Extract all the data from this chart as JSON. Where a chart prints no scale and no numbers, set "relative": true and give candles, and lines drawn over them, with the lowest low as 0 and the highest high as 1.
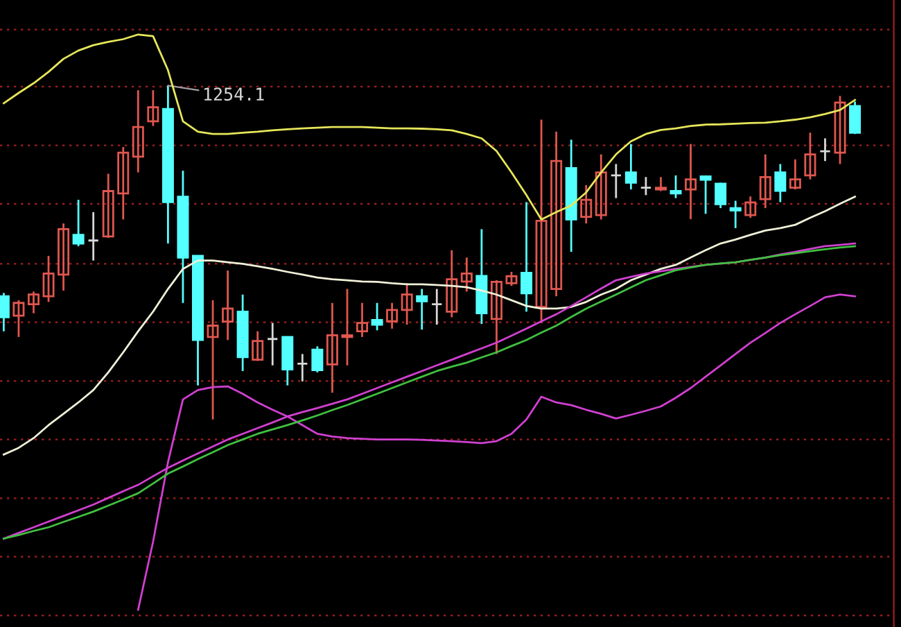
{
  "chart_data": {
    "type": "candlestick",
    "relative": true,
    "ref_lines": [
      {
        "axis": "y",
        "value": 1.168,
        "color": "#a02020",
        "line_style": "dotted"
      },
      {
        "axis": "y",
        "value": 0.997,
        "color": "#a02020",
        "line_style": "dotted"
      },
      {
        "axis": "y",
        "value": 0.821,
        "color": "#a02020",
        "line_style": "dotted"
      },
      {
        "axis": "y",
        "value": 0.646,
        "color": "#a02020",
        "line_style": "dotted"
      },
      {
        "axis": "y",
        "value": 0.466,
        "color": "#a02020",
        "line_style": "dotted"
      },
      {
        "axis": "y",
        "value": 0.291,
        "color": "#a02020",
        "line_style": "dotted"
      },
      {
        "axis": "y",
        "value": 0.115,
        "color": "#a02020",
        "line_style": "dotted"
      },
      {
        "axis": "y",
        "value": -0.06,
        "color": "#a02020",
        "line_style": "dotted"
      },
      {
        "axis": "y",
        "value": -0.236,
        "color": "#a02020",
        "line_style": "dotted"
      },
      {
        "axis": "y",
        "value": -0.411,
        "color": "#a02020",
        "line_style": "dotted"
      },
      {
        "axis": "y",
        "value": -0.587,
        "color": "#a02020",
        "line_style": "dotted"
      }
    ],
    "categories": [
      null,
      null,
      null,
      null,
      null,
      null,
      null,
      null,
      null,
      null,
      null,
      null,
      null,
      null,
      null,
      null,
      null,
      null,
      null,
      null,
      null,
      null,
      null,
      null,
      null,
      null,
      null,
      null,
      null,
      null,
      null,
      null,
      null,
      null,
      null,
      null,
      null,
      null,
      null,
      null,
      null,
      null,
      null,
      null,
      null,
      null,
      null,
      null,
      null,
      null,
      null,
      null,
      null,
      null,
      null,
      null,
      null,
      null
    ],
    "ohlc": [
      [
        0.369,
        0.379,
        0.264,
        0.306
      ],
      [
        0.311,
        0.357,
        0.247,
        0.349
      ],
      [
        0.345,
        0.383,
        0.318,
        0.374
      ],
      [
        0.369,
        0.49,
        0.352,
        0.437
      ],
      [
        0.434,
        0.587,
        0.386,
        0.57
      ],
      [
        0.553,
        0.658,
        0.519,
        0.527
      ],
      [
        0.536,
        0.621,
        0.476,
        0.536
      ],
      [
        0.548,
        0.736,
        0.544,
        0.684
      ],
      [
        0.677,
        0.816,
        0.599,
        0.799
      ],
      [
        0.787,
        0.986,
        0.74,
        0.876
      ],
      [
        0.893,
        0.986,
        0.879,
        0.935
      ],
      [
        0.93,
        1.0,
        0.527,
        0.651
      ],
      [
        0.667,
        0.745,
        0.349,
        0.485
      ],
      [
        0.49,
        0.49,
        0.102,
        0.238
      ],
      [
        0.247,
        0.357,
        0.0,
        0.281
      ],
      [
        0.293,
        0.446,
        0.238,
        0.332
      ],
      [
        0.323,
        0.374,
        0.145,
        0.187
      ],
      [
        0.179,
        0.264,
        0.175,
        0.235
      ],
      [
        0.241,
        0.289,
        0.162,
        0.241
      ],
      [
        0.247,
        0.247,
        0.102,
        0.15
      ],
      [
        0.167,
        0.196,
        0.114,
        0.167
      ],
      [
        0.209,
        0.219,
        0.141,
        0.148
      ],
      [
        0.165,
        0.349,
        0.08,
        0.252
      ],
      [
        0.247,
        0.391,
        0.162,
        0.252
      ],
      [
        0.264,
        0.349,
        0.247,
        0.289
      ],
      [
        0.298,
        0.349,
        0.267,
        0.284
      ],
      [
        0.294,
        0.349,
        0.272,
        0.328
      ],
      [
        0.328,
        0.408,
        0.284,
        0.374
      ],
      [
        0.369,
        0.391,
        0.269,
        0.354
      ],
      [
        0.345,
        0.391,
        0.284,
        0.345
      ],
      [
        0.323,
        0.507,
        0.306,
        0.42
      ],
      [
        0.413,
        0.485,
        0.383,
        0.437
      ],
      [
        0.43,
        0.57,
        0.286,
        0.318
      ],
      [
        0.301,
        0.417,
        0.196,
        0.412
      ],
      [
        0.408,
        0.442,
        0.4,
        0.429
      ],
      [
        0.439,
        0.651,
        0.323,
        0.378
      ],
      [
        0.337,
        0.898,
        0.289,
        0.595
      ],
      [
        0.391,
        0.862,
        0.369,
        0.774
      ],
      [
        0.753,
        0.838,
        0.502,
        0.599
      ],
      [
        0.607,
        0.702,
        0.587,
        0.658
      ],
      [
        0.612,
        0.794,
        0.599,
        0.74
      ],
      [
        0.731,
        0.765,
        0.663,
        0.731
      ],
      [
        0.74,
        0.825,
        0.689,
        0.709
      ],
      [
        0.694,
        0.726,
        0.672,
        0.694
      ],
      [
        0.689,
        0.726,
        0.684,
        0.694
      ],
      [
        0.684,
        0.731,
        0.663,
        0.677
      ],
      [
        0.689,
        0.825,
        0.6,
        0.719
      ],
      [
        0.728,
        0.731,
        0.616,
        0.718
      ],
      [
        0.706,
        0.709,
        0.633,
        0.645
      ],
      [
        0.633,
        0.655,
        0.573,
        0.626
      ],
      [
        0.612,
        0.668,
        0.604,
        0.65
      ],
      [
        0.66,
        0.794,
        0.633,
        0.726
      ],
      [
        0.74,
        0.765,
        0.651,
        0.685
      ],
      [
        0.694,
        0.779,
        0.689,
        0.719
      ],
      [
        0.731,
        0.859,
        0.719,
        0.794
      ],
      [
        0.803,
        0.842,
        0.774,
        0.803
      ],
      [
        0.799,
        0.969,
        0.765,
        0.949
      ],
      [
        0.939,
        0.952,
        0.855,
        0.859
      ]
    ],
    "colors": [
      "#54ffff",
      "#e0574f",
      "#e0574f",
      "#e0574f",
      "#e0574f",
      "#54ffff",
      "#d8d8d8",
      "#e0574f",
      "#e0574f",
      "#e0574f",
      "#e0574f",
      "#54ffff",
      "#54ffff",
      "#54ffff",
      "#e0574f",
      "#e0574f",
      "#54ffff",
      "#e0574f",
      "#d8d8d8",
      "#54ffff",
      "#d8d8d8",
      "#54ffff",
      "#e0574f",
      "#e0574f",
      "#e0574f",
      "#54ffff",
      "#e0574f",
      "#e0574f",
      "#54ffff",
      "#d8d8d8",
      "#e0574f",
      "#e0574f",
      "#54ffff",
      "#e0574f",
      "#e0574f",
      "#54ffff",
      "#e0574f",
      "#e0574f",
      "#54ffff",
      "#e0574f",
      "#e0574f",
      "#d8d8d8",
      "#54ffff",
      "#d8d8d8",
      "#e0574f",
      "#54ffff",
      "#e0574f",
      "#54ffff",
      "#54ffff",
      "#54ffff",
      "#e0574f",
      "#e0574f",
      "#54ffff",
      "#e0574f",
      "#e0574f",
      "#d8d8d8",
      "#e0574f",
      "#54ffff"
    ],
    "series": [
      {
        "type": "line",
        "color": "#e6e65a",
        "values": [
          0.947,
          0.978,
          1.007,
          1.041,
          1.08,
          1.105,
          1.121,
          1.131,
          1.139,
          1.153,
          1.148,
          1.046,
          0.893,
          0.862,
          0.855,
          0.855,
          0.859,
          0.862,
          0.866,
          0.869,
          0.872,
          0.874,
          0.876,
          0.876,
          0.876,
          0.874,
          0.872,
          0.872,
          0.871,
          0.869,
          0.866,
          0.855,
          0.842,
          0.804,
          0.74,
          0.672,
          0.599,
          0.621,
          0.641,
          0.68,
          0.74,
          0.794,
          0.833,
          0.855,
          0.867,
          0.872,
          0.879,
          0.883,
          0.884,
          0.886,
          0.888,
          0.889,
          0.893,
          0.898,
          0.905,
          0.915,
          0.927,
          0.957
        ]
      },
      {
        "type": "line",
        "color": "#f0f0d8",
        "values": [
          -0.105,
          -0.085,
          -0.056,
          -0.017,
          0.017,
          0.051,
          0.088,
          0.141,
          0.201,
          0.264,
          0.323,
          0.391,
          0.451,
          0.476,
          0.476,
          0.471,
          0.466,
          0.459,
          0.451,
          0.442,
          0.434,
          0.425,
          0.42,
          0.417,
          0.413,
          0.412,
          0.408,
          0.405,
          0.405,
          0.403,
          0.4,
          0.396,
          0.386,
          0.374,
          0.357,
          0.34,
          0.332,
          0.332,
          0.337,
          0.352,
          0.374,
          0.391,
          0.417,
          0.434,
          0.451,
          0.463,
          0.485,
          0.507,
          0.527,
          0.539,
          0.553,
          0.566,
          0.573,
          0.583,
          0.604,
          0.624,
          0.646,
          0.667
        ]
      },
      {
        "type": "line",
        "color": "#d040d0",
        "values": [
          null,
          null,
          null,
          null,
          null,
          null,
          null,
          null,
          null,
          -0.57,
          -0.366,
          -0.128,
          0.06,
          0.088,
          0.097,
          0.099,
          0.077,
          0.051,
          0.029,
          0.009,
          -0.017,
          -0.043,
          -0.051,
          -0.056,
          -0.058,
          -0.06,
          -0.06,
          -0.06,
          -0.061,
          -0.063,
          -0.065,
          -0.068,
          -0.071,
          -0.065,
          -0.043,
          0.0,
          0.068,
          0.051,
          0.043,
          0.029,
          0.017,
          0.003,
          0.014,
          0.026,
          0.039,
          0.065,
          0.094,
          0.128,
          0.162,
          0.196,
          0.23,
          0.259,
          0.289,
          0.315,
          0.34,
          0.366,
          0.374,
          0.369
        ]
      },
      {
        "type": "line",
        "color": "#d040d0",
        "values": [
          -0.357,
          -0.34,
          -0.323,
          -0.306,
          -0.289,
          -0.272,
          -0.255,
          -0.235,
          -0.215,
          -0.196,
          -0.17,
          -0.145,
          -0.123,
          -0.102,
          -0.081,
          -0.06,
          -0.043,
          -0.026,
          -0.009,
          0.009,
          0.022,
          0.034,
          0.047,
          0.06,
          0.077,
          0.094,
          0.111,
          0.128,
          0.145,
          0.162,
          0.179,
          0.196,
          0.213,
          0.23,
          0.251,
          0.272,
          0.294,
          0.315,
          0.34,
          0.366,
          0.392,
          0.417,
          0.427,
          0.437,
          0.444,
          0.451,
          0.457,
          0.463,
          0.467,
          0.471,
          0.478,
          0.485,
          0.494,
          0.502,
          0.511,
          0.519,
          0.523,
          0.527
        ]
      },
      {
        "type": "line",
        "color": "#40c040",
        "values": [
          -0.357,
          -0.346,
          -0.334,
          -0.323,
          -0.307,
          -0.292,
          -0.276,
          -0.258,
          -0.24,
          -0.221,
          -0.192,
          -0.162,
          -0.141,
          -0.119,
          -0.098,
          -0.077,
          -0.06,
          -0.043,
          -0.03,
          -0.017,
          -0.003,
          0.012,
          0.028,
          0.043,
          0.06,
          0.077,
          0.094,
          0.111,
          0.128,
          0.145,
          0.158,
          0.17,
          0.186,
          0.201,
          0.22,
          0.238,
          0.26,
          0.281,
          0.307,
          0.332,
          0.353,
          0.374,
          0.396,
          0.417,
          0.432,
          0.447,
          0.455,
          0.463,
          0.467,
          0.471,
          0.478,
          0.485,
          0.492,
          0.498,
          0.504,
          0.51,
          0.515,
          0.519
        ]
      }
    ],
    "annotations": [
      "1254.1"
    ]
  }
}
